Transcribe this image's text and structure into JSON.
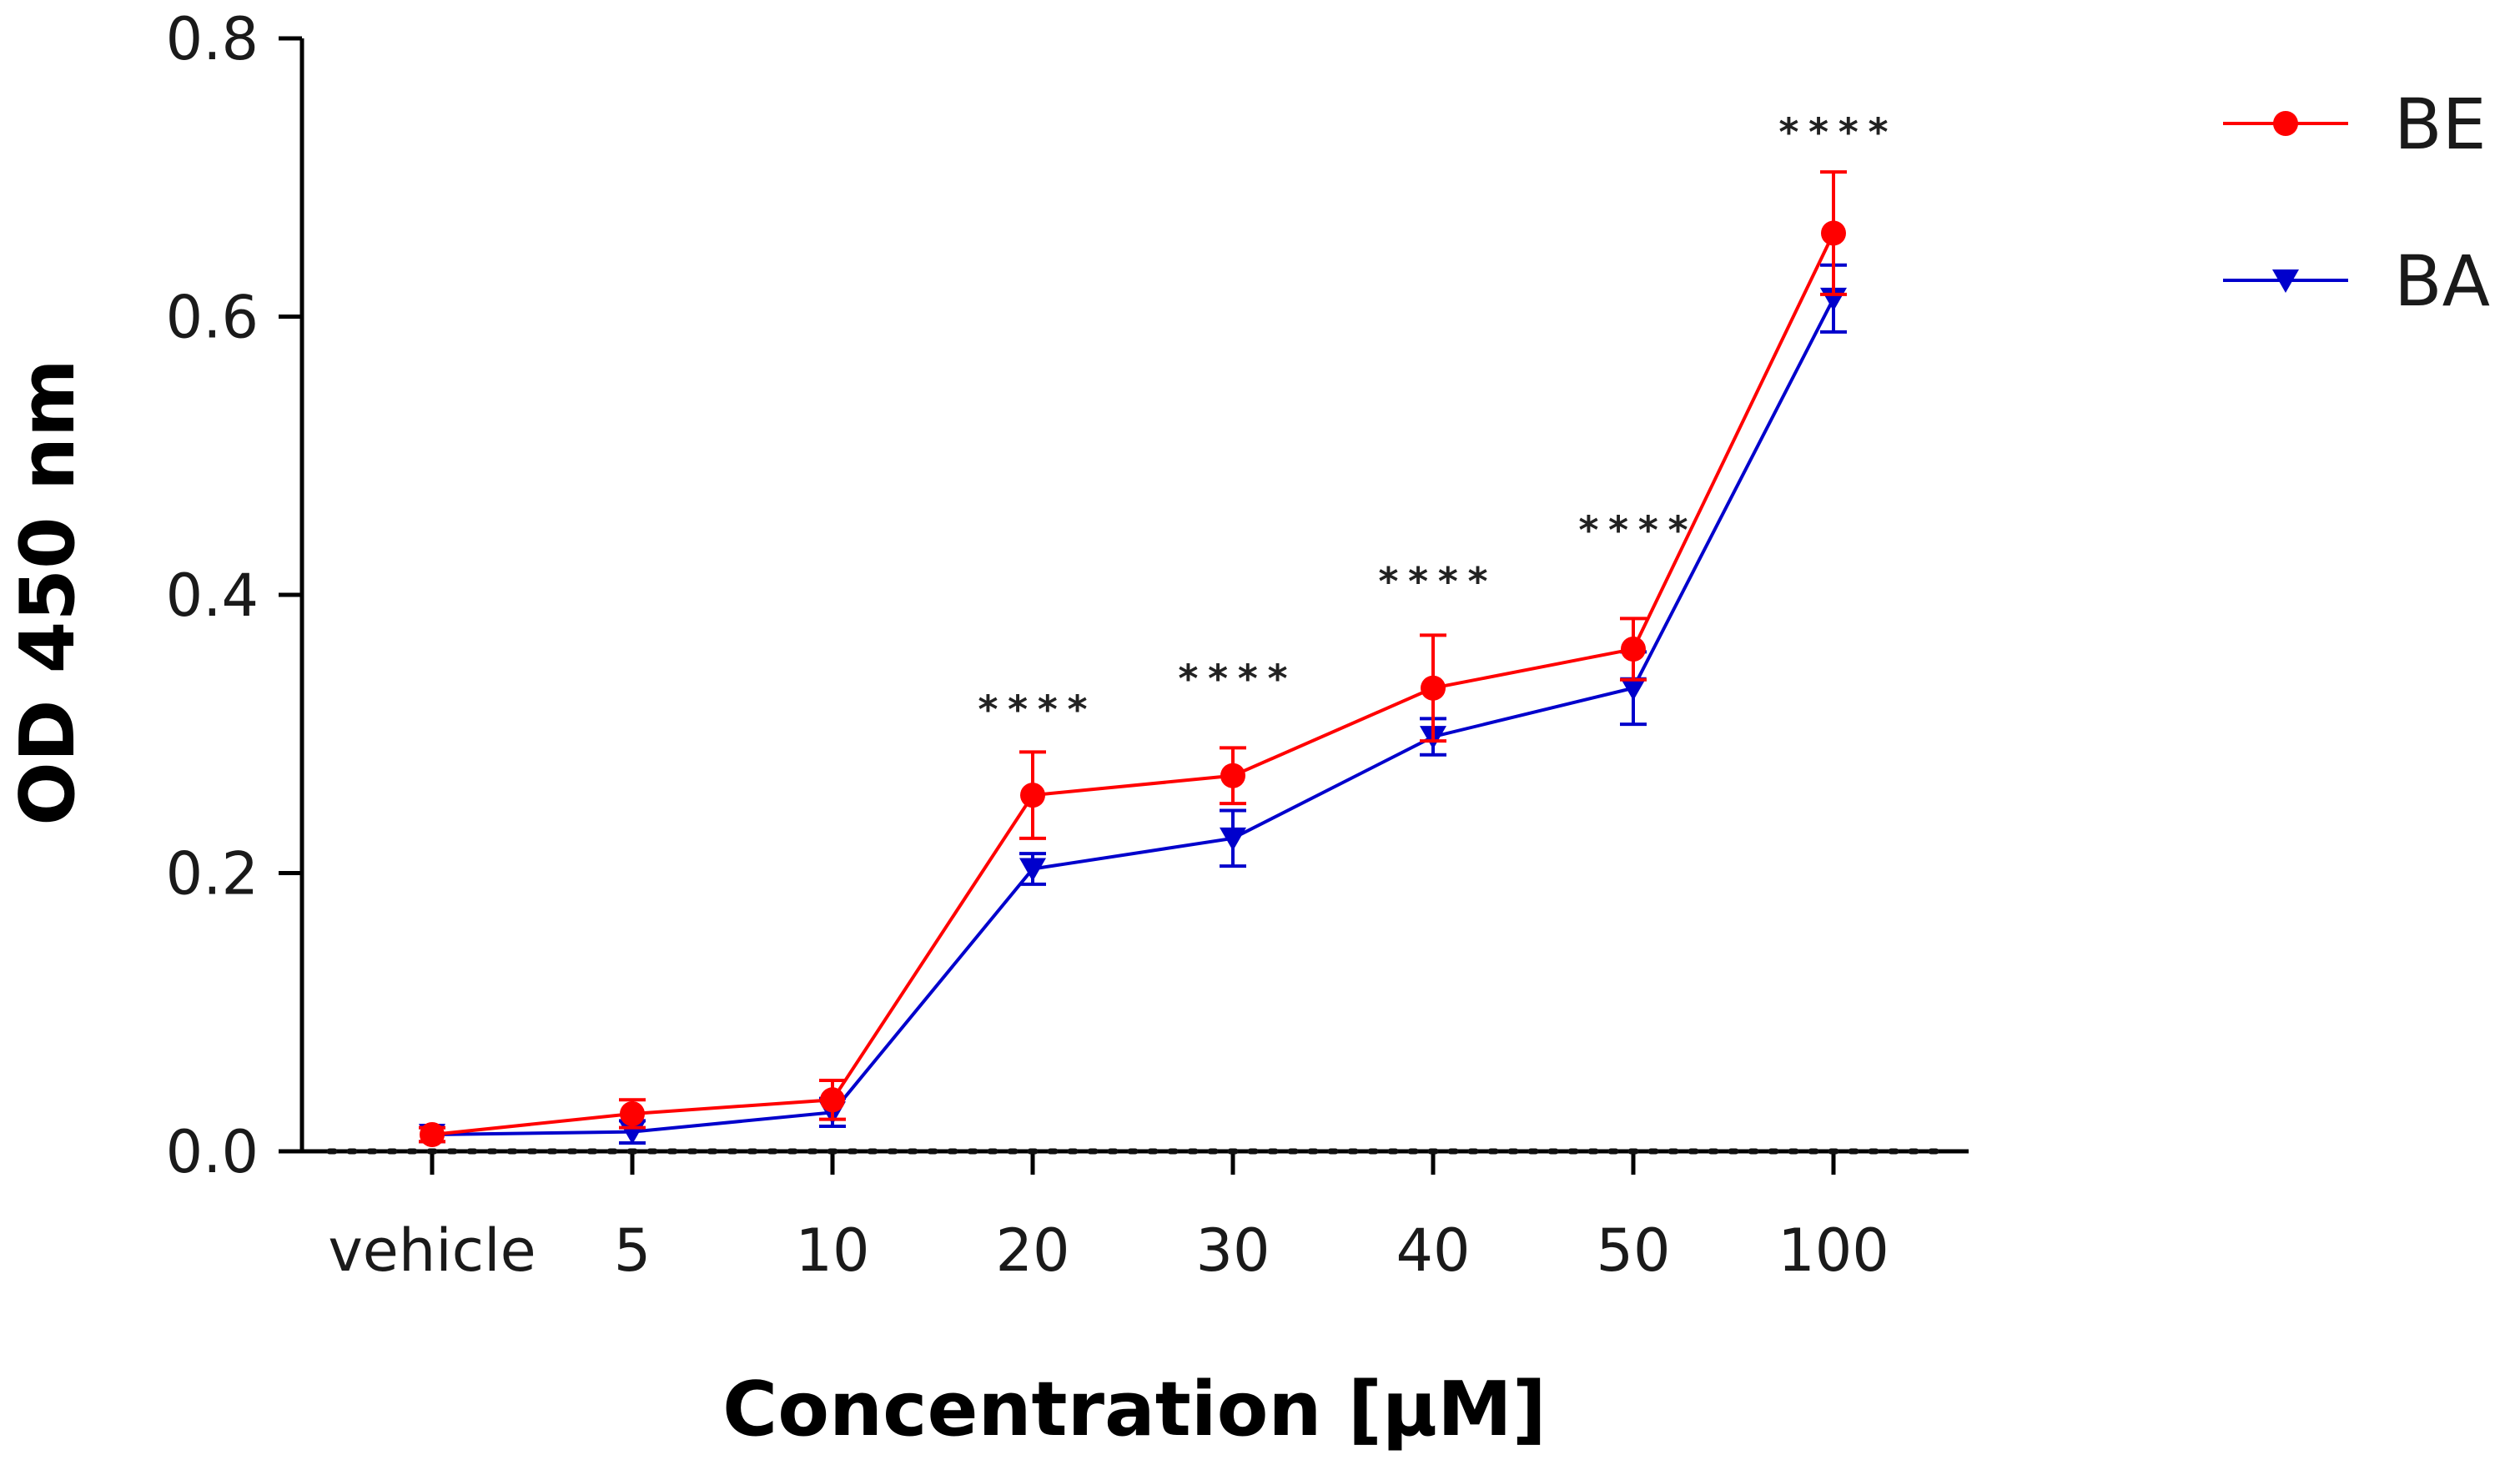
{
  "chart_data": {
    "type": "line",
    "title": "",
    "xlabel": "Concentration [μM]",
    "ylabel": "OD 450 nm",
    "categories": [
      "vehicle",
      "5",
      "10",
      "20",
      "30",
      "40",
      "50",
      "100"
    ],
    "ylim": [
      0,
      0.8
    ],
    "yticks": [
      0.0,
      0.2,
      0.4,
      0.6,
      0.8
    ],
    "ytick_labels": [
      "0.0",
      "0.2",
      "0.4",
      "0.6",
      "0.8"
    ],
    "grid": false,
    "legend_position": "top-right",
    "baseline": {
      "y": 0.0,
      "style": "dotted"
    },
    "series": [
      {
        "name": "BE",
        "color": "#ff0000",
        "marker": "circle",
        "values": [
          0.012,
          0.027,
          0.037,
          0.256,
          0.27,
          0.333,
          0.361,
          0.66
        ],
        "errors": [
          0.005,
          0.01,
          0.014,
          0.031,
          0.02,
          0.038,
          0.022,
          0.044
        ]
      },
      {
        "name": "BA",
        "color": "#0000cc",
        "marker": "triangle-down",
        "values": [
          0.012,
          0.014,
          0.028,
          0.203,
          0.225,
          0.298,
          0.333,
          0.613
        ],
        "errors": [
          0.005,
          0.008,
          0.01,
          0.011,
          0.02,
          0.013,
          0.026,
          0.024
        ]
      }
    ],
    "annotations": [
      {
        "category": "20",
        "text": "****",
        "y": 0.32
      },
      {
        "category": "30",
        "text": "****",
        "y": 0.342
      },
      {
        "category": "40",
        "text": "****",
        "y": 0.412
      },
      {
        "category": "50",
        "text": "****",
        "y": 0.449
      },
      {
        "category": "100",
        "text": "****",
        "y": 0.735
      }
    ]
  }
}
